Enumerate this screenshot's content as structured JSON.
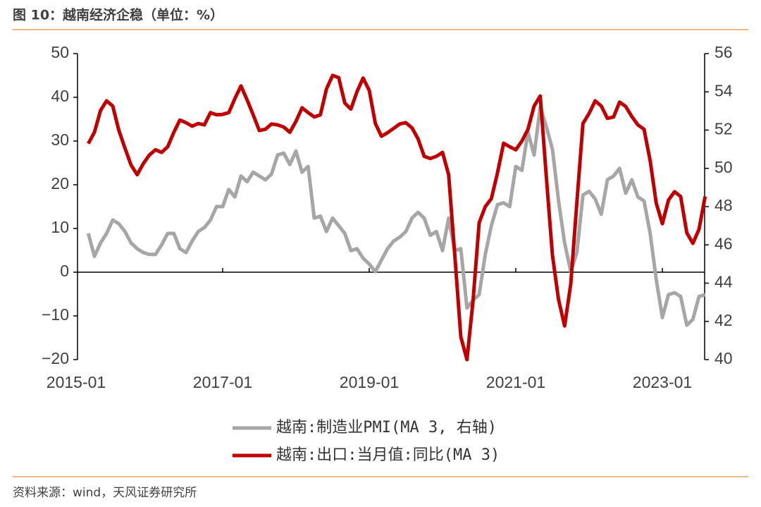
{
  "chart_data": {
    "type": "line",
    "title": "图 10：越南经济企稳（单位：%）",
    "source": "资料来源：wind，天风证券研究所",
    "x": [
      "2015-01",
      "2015-02",
      "2015-03",
      "2015-04",
      "2015-05",
      "2015-06",
      "2015-07",
      "2015-08",
      "2015-09",
      "2015-10",
      "2015-11",
      "2015-12",
      "2016-01",
      "2016-02",
      "2016-03",
      "2016-04",
      "2016-05",
      "2016-06",
      "2016-07",
      "2016-08",
      "2016-09",
      "2016-10",
      "2016-11",
      "2016-12",
      "2017-01",
      "2017-02",
      "2017-03",
      "2017-04",
      "2017-05",
      "2017-06",
      "2017-07",
      "2017-08",
      "2017-09",
      "2017-10",
      "2017-11",
      "2017-12",
      "2018-01",
      "2018-02",
      "2018-03",
      "2018-04",
      "2018-05",
      "2018-06",
      "2018-07",
      "2018-08",
      "2018-09",
      "2018-10",
      "2018-11",
      "2018-12",
      "2019-01",
      "2019-02",
      "2019-03",
      "2019-04",
      "2019-05",
      "2019-06",
      "2019-07",
      "2019-08",
      "2019-09",
      "2019-10",
      "2019-11",
      "2019-12",
      "2020-01",
      "2020-02",
      "2020-03",
      "2020-04",
      "2020-05",
      "2020-06",
      "2020-07",
      "2020-08",
      "2020-09",
      "2020-10",
      "2020-11",
      "2020-12",
      "2021-01",
      "2021-02",
      "2021-03",
      "2021-04",
      "2021-05",
      "2021-06",
      "2021-07",
      "2021-08",
      "2021-09",
      "2021-10",
      "2021-11",
      "2021-12",
      "2022-01",
      "2022-02",
      "2022-03",
      "2022-04",
      "2022-05",
      "2022-06",
      "2022-07",
      "2022-08",
      "2022-09",
      "2022-10",
      "2022-11",
      "2022-12",
      "2023-01",
      "2023-02",
      "2023-03",
      "2023-04",
      "2023-05",
      "2023-06",
      "2023-07",
      "2023-08"
    ],
    "xticks": [
      "2015-01",
      "2017-01",
      "2019-01",
      "2021-01",
      "2023-01"
    ],
    "ylim": [
      -20,
      50
    ],
    "yticks": [
      {
        "value": -20,
        "label": "−20"
      },
      {
        "value": -10,
        "label": "−10"
      },
      0,
      10,
      20,
      30,
      40,
      50
    ],
    "y2lim": [
      40,
      56
    ],
    "y2ticks": [
      40,
      42,
      44,
      46,
      48,
      50,
      52,
      54,
      56
    ],
    "series": [
      {
        "name": "越南:制造业PMI(MA 3, 右轴)",
        "color": "#a6a6a6",
        "axis": "y2",
        "values": [
          null,
          null,
          46.6,
          45.4,
          46.1,
          46.6,
          47.3,
          47.1,
          46.7,
          46.1,
          45.8,
          45.6,
          45.5,
          45.5,
          46,
          46.6,
          46.6,
          45.8,
          45.6,
          46.2,
          46.7,
          46.9,
          47.3,
          48,
          48,
          48.9,
          48.5,
          49.6,
          49.3,
          49.8,
          49.6,
          49.4,
          49.7,
          50.7,
          50.8,
          50.2,
          50.9,
          49.8,
          50.1,
          47.4,
          47.5,
          46.7,
          47.4,
          47,
          46.6,
          45.7,
          45.8,
          45.3,
          45,
          44.6,
          45.2,
          45.8,
          46.2,
          46.4,
          46.7,
          47.4,
          47.7,
          47.4,
          46.5,
          46.7,
          45.7,
          47.4,
          45.7,
          45.8,
          42.7,
          43.1,
          43.4,
          45.5,
          47,
          48.1,
          48.2,
          48,
          50.1,
          49.9,
          51.9,
          50.7,
          53.2,
          52.2,
          51,
          48.3,
          46.1,
          44.6,
          45.6,
          48.6,
          48.8,
          48.4,
          47.6,
          49.4,
          49.6,
          50,
          48.7,
          49.4,
          48.5,
          48.3,
          46.6,
          44.2,
          42.2,
          43.4,
          43.5,
          43.3,
          41.8,
          42.1,
          43.3,
          43.4
        ]
      },
      {
        "name": "越南:出口:当月值:同比(MA 3)",
        "color": "#c00000",
        "values": [
          null,
          null,
          29.4,
          32,
          37,
          39.2,
          38,
          32.4,
          28.4,
          24.5,
          22.3,
          24.8,
          26.8,
          28,
          27.4,
          28.7,
          32,
          34.8,
          34.2,
          33.4,
          34,
          33.7,
          36.5,
          36,
          36.1,
          36.5,
          39.7,
          42.6,
          39.4,
          36,
          32.4,
          32.7,
          33.9,
          33.7,
          33.2,
          32,
          34.5,
          37.6,
          36.5,
          35.5,
          36,
          41.9,
          45,
          44.5,
          38.7,
          37.3,
          41.3,
          44.4,
          41.6,
          34,
          31.1,
          31.9,
          32.9,
          33.9,
          34.2,
          33,
          30.5,
          26.5,
          26,
          26.5,
          27.4,
          22.3,
          4.2,
          -14.8,
          -20,
          -6.6,
          11.3,
          15,
          16.8,
          22.7,
          29.5,
          28.7,
          28,
          30,
          32.7,
          38,
          40.3,
          21.9,
          3.9,
          -6.3,
          -12.3,
          -2.7,
          16,
          34,
          36.3,
          39.2,
          38,
          35.2,
          35.5,
          38.9,
          37.9,
          35.6,
          33.7,
          32.7,
          25.5,
          15.8,
          11.1,
          16.5,
          18.4,
          17.3,
          9,
          6.6,
          9.8,
          17.3
        ]
      }
    ]
  }
}
